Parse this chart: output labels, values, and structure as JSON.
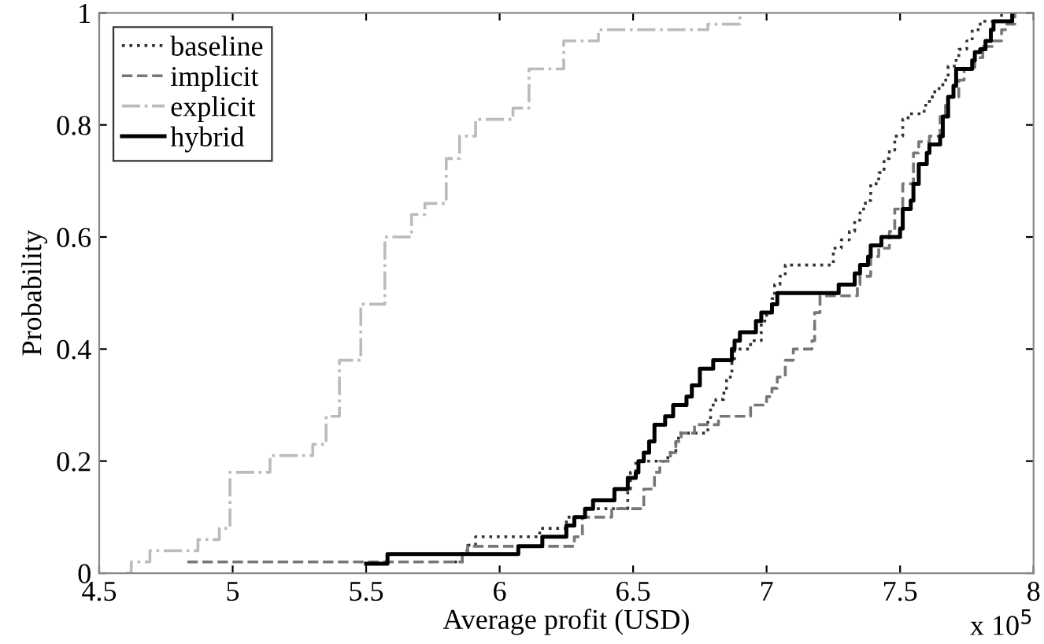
{
  "chart_data": {
    "type": "step",
    "xlabel": "Average profit (USD)",
    "ylabel": "Probability",
    "annotations": [
      "x 10$^{5}$"
    ],
    "xlim": [
      4.5,
      8
    ],
    "xticks": [
      4.5,
      5,
      5.5,
      6,
      6.5,
      7,
      7.5,
      8
    ],
    "ylim": [
      0,
      1
    ],
    "yticks": [
      0,
      0.2,
      0.4,
      0.6,
      0.8,
      1
    ],
    "grid": false,
    "legend": "top left",
    "marker": "none",
    "series": [
      {
        "name": "baseline",
        "color": "#333333",
        "line_style": "dotted",
        "x": [
          5.83,
          5.86,
          5.88,
          5.91,
          6.15,
          6.25,
          6.32,
          6.48,
          6.49,
          6.51,
          6.63,
          6.66,
          6.67,
          6.78,
          6.79,
          6.81,
          6.84,
          6.85,
          6.87,
          6.88,
          6.94,
          6.98,
          7.0,
          7.02,
          7.03,
          7.05,
          7.07,
          7.25,
          7.28,
          7.31,
          7.33,
          7.35,
          7.37,
          7.39,
          7.42,
          7.44,
          7.46,
          7.48,
          7.51,
          7.53,
          7.59,
          7.61,
          7.63,
          7.66,
          7.68,
          7.71,
          7.72,
          7.75,
          7.77,
          7.8,
          7.88
        ],
        "values": [
          0.02,
          0.04,
          0.05,
          0.065,
          0.08,
          0.1,
          0.115,
          0.15,
          0.18,
          0.2,
          0.215,
          0.235,
          0.25,
          0.275,
          0.3,
          0.31,
          0.33,
          0.35,
          0.38,
          0.4,
          0.415,
          0.45,
          0.465,
          0.49,
          0.515,
          0.53,
          0.55,
          0.58,
          0.595,
          0.61,
          0.63,
          0.65,
          0.665,
          0.695,
          0.715,
          0.74,
          0.755,
          0.78,
          0.81,
          0.82,
          0.835,
          0.85,
          0.865,
          0.88,
          0.905,
          0.92,
          0.935,
          0.95,
          0.97,
          0.985,
          1.0
        ]
      },
      {
        "name": "implicit",
        "color": "#777777",
        "line_style": "dashed",
        "x": [
          4.83,
          5.86,
          5.88,
          6.28,
          6.31,
          6.42,
          6.54,
          6.58,
          6.6,
          6.64,
          6.66,
          6.68,
          6.73,
          6.82,
          6.94,
          7.0,
          7.02,
          7.04,
          7.07,
          7.1,
          7.17,
          7.18,
          7.2,
          7.34,
          7.35,
          7.39,
          7.42,
          7.46,
          7.48,
          7.51,
          7.55,
          7.57,
          7.61,
          7.65,
          7.67,
          7.68,
          7.72,
          7.74,
          7.78,
          7.81,
          7.85,
          7.88,
          7.9,
          7.93
        ],
        "values": [
          0.02,
          0.035,
          0.048,
          0.065,
          0.1,
          0.115,
          0.15,
          0.18,
          0.2,
          0.215,
          0.235,
          0.25,
          0.265,
          0.28,
          0.3,
          0.315,
          0.33,
          0.35,
          0.38,
          0.4,
          0.415,
          0.465,
          0.495,
          0.515,
          0.53,
          0.565,
          0.58,
          0.61,
          0.65,
          0.695,
          0.75,
          0.77,
          0.78,
          0.815,
          0.835,
          0.85,
          0.88,
          0.9,
          0.92,
          0.94,
          0.95,
          0.97,
          0.98,
          1.0
        ]
      },
      {
        "name": "explicit",
        "color": "#bbbbbb",
        "line_style": "dashdot",
        "x": [
          4.6,
          4.62,
          4.69,
          4.87,
          4.95,
          4.99,
          5.14,
          5.3,
          5.35,
          5.4,
          5.48,
          5.57,
          5.67,
          5.72,
          5.8,
          5.85,
          5.91,
          6.05,
          6.11,
          6.24,
          6.37,
          6.78,
          6.9
        ],
        "values": [
          0.0,
          0.02,
          0.04,
          0.06,
          0.08,
          0.18,
          0.21,
          0.23,
          0.28,
          0.38,
          0.48,
          0.6,
          0.64,
          0.66,
          0.74,
          0.78,
          0.81,
          0.83,
          0.9,
          0.95,
          0.97,
          0.98,
          1.0
        ]
      },
      {
        "name": "hybrid",
        "color": "#000000",
        "line_style": "solid",
        "x": [
          5.5,
          5.58,
          6.07,
          6.16,
          6.25,
          6.28,
          6.32,
          6.35,
          6.43,
          6.48,
          6.51,
          6.52,
          6.54,
          6.56,
          6.58,
          6.62,
          6.65,
          6.7,
          6.72,
          6.75,
          6.8,
          6.87,
          6.88,
          6.9,
          6.96,
          6.98,
          7.02,
          7.04,
          7.27,
          7.33,
          7.35,
          7.38,
          7.39,
          7.43,
          7.5,
          7.51,
          7.54,
          7.55,
          7.57,
          7.6,
          7.61,
          7.65,
          7.66,
          7.68,
          7.7,
          7.71,
          7.77,
          7.78,
          7.8,
          7.82,
          7.84,
          7.85,
          7.92
        ],
        "values": [
          0.017,
          0.034,
          0.048,
          0.065,
          0.085,
          0.1,
          0.115,
          0.13,
          0.15,
          0.17,
          0.18,
          0.2,
          0.215,
          0.235,
          0.265,
          0.28,
          0.3,
          0.315,
          0.335,
          0.365,
          0.38,
          0.4,
          0.415,
          0.43,
          0.45,
          0.465,
          0.48,
          0.5,
          0.515,
          0.535,
          0.55,
          0.565,
          0.585,
          0.6,
          0.615,
          0.65,
          0.665,
          0.695,
          0.73,
          0.75,
          0.765,
          0.78,
          0.815,
          0.85,
          0.87,
          0.9,
          0.915,
          0.93,
          0.935,
          0.95,
          0.97,
          0.985,
          1.0
        ]
      }
    ]
  }
}
